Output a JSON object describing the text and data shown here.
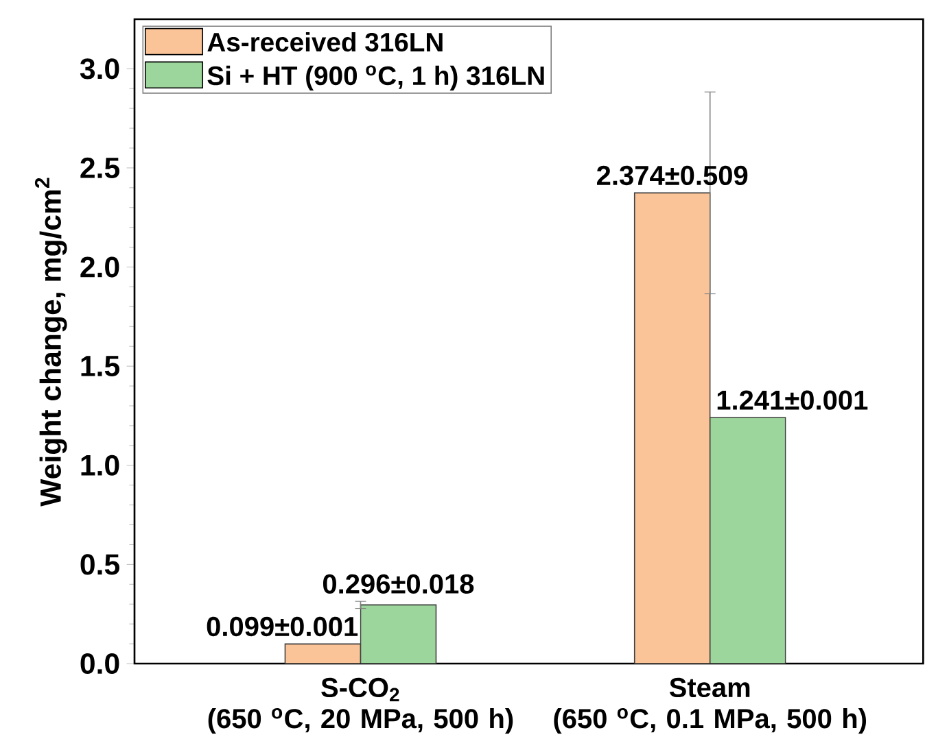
{
  "chart_data": {
    "type": "bar",
    "ylabel": "Weight change, mg/cm$^{2}$",
    "categories": [
      "S-CO$_{2}$\n(650 $^{o}$C, 20 MPa, 500 h)",
      "Steam\n(650 $^{o}$C, 0.1 MPa, 500 h)"
    ],
    "series": [
      {
        "name": "As-received 316LN",
        "color": "#fac498",
        "values": [
          0.099,
          2.374
        ],
        "errors": [
          null,
          0.509
        ],
        "value_labels": [
          "0.099±0.001",
          "2.374±0.509"
        ]
      },
      {
        "name": "Si + HT (900 $^{o}$C, 1 h) 316LN",
        "color": "#9dd69c",
        "values": [
          0.296,
          1.241
        ],
        "errors": [
          0.018,
          null
        ],
        "value_labels": [
          "0.296±0.018",
          "1.241±0.001"
        ]
      }
    ],
    "ylim": [
      0,
      3.25
    ],
    "yticks": [
      {
        "value": 0,
        "label": "0.0"
      },
      {
        "value": 0.5,
        "label": "0.5"
      },
      {
        "value": 1,
        "label": "1.0"
      },
      {
        "value": 1.5,
        "label": "1.5"
      },
      {
        "value": 2,
        "label": "2.0"
      },
      {
        "value": 2.5,
        "label": "2.5"
      },
      {
        "value": 3,
        "label": "3.0"
      }
    ],
    "legend": "top left"
  }
}
